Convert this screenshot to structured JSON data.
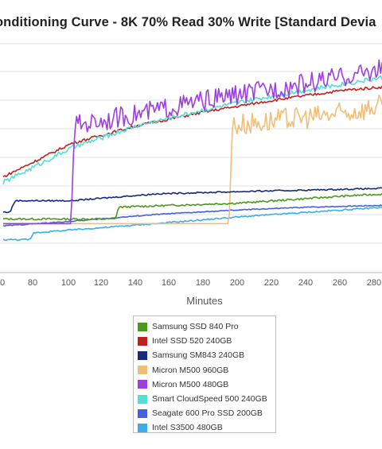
{
  "chart_data": {
    "type": "line",
    "title": "onditioning Curve - 8K 70% Read 30% Write [Standard Devia",
    "xlabel": "Minutes",
    "ylabel": "",
    "xlim": [
      60,
      285
    ],
    "ylim": [
      0,
      10
    ],
    "grid": true,
    "legend_position": "bottom-center",
    "x_ticks": [
      "0",
      "80",
      "100",
      "120",
      "140",
      "160",
      "180",
      "200",
      "220",
      "240",
      "260",
      "280"
    ],
    "series": [
      {
        "name": "Samsung SSD 840 Pro",
        "color": "#4a9a1c",
        "points": [
          [
            60,
            2.34
          ],
          [
            126,
            2.34
          ],
          [
            128,
            2.86
          ],
          [
            200,
            3.04
          ],
          [
            260,
            3.34
          ],
          [
            285,
            3.44
          ]
        ]
      },
      {
        "name": "Intel SSD 520 240GB",
        "color": "#c0211f",
        "points": [
          [
            60,
            4.18
          ],
          [
            100,
            5.64
          ],
          [
            140,
            6.44
          ],
          [
            180,
            7.04
          ],
          [
            220,
            7.54
          ],
          [
            260,
            7.96
          ],
          [
            285,
            8.12
          ]
        ]
      },
      {
        "name": "Samsung SM843 240GB",
        "color": "#1a2a7a",
        "points": [
          [
            60,
            2.64
          ],
          [
            64,
            2.64
          ],
          [
            67,
            3.14
          ],
          [
            100,
            3.14
          ],
          [
            150,
            3.44
          ],
          [
            200,
            3.54
          ],
          [
            285,
            3.68
          ]
        ]
      },
      {
        "name": "Micron M500 960GB",
        "color": "#f0be78",
        "points": [
          [
            60,
            2.14
          ],
          [
            193,
            2.14
          ],
          [
            195,
            6.44
          ],
          [
            220,
            6.64
          ],
          [
            260,
            6.94
          ],
          [
            285,
            7.34
          ]
        ]
      },
      {
        "name": "Micron M500 480GB",
        "color": "#9d3fe0",
        "points": [
          [
            60,
            2.14
          ],
          [
            100,
            2.14
          ],
          [
            102,
            6.44
          ],
          [
            140,
            6.94
          ],
          [
            180,
            7.54
          ],
          [
            220,
            8.04
          ],
          [
            260,
            8.54
          ],
          [
            285,
            8.94
          ]
        ]
      },
      {
        "name": "Smart CloudSpeed 500 240GB",
        "color": "#4fe0d8",
        "points": [
          [
            60,
            3.94
          ],
          [
            100,
            5.44
          ],
          [
            140,
            6.44
          ],
          [
            180,
            7.14
          ],
          [
            220,
            7.74
          ],
          [
            260,
            8.24
          ],
          [
            285,
            8.54
          ]
        ]
      },
      {
        "name": "Seagate 600 Pro SSD 200GB",
        "color": "#4461e0",
        "points": [
          [
            60,
            2.04
          ],
          [
            100,
            2.24
          ],
          [
            150,
            2.54
          ],
          [
            200,
            2.74
          ],
          [
            240,
            2.86
          ],
          [
            285,
            2.94
          ]
        ]
      },
      {
        "name": "Intel S3500 480GB",
        "color": "#3aaee8",
        "points": [
          [
            60,
            1.44
          ],
          [
            76,
            1.44
          ],
          [
            78,
            1.74
          ],
          [
            150,
            2.14
          ],
          [
            200,
            2.44
          ],
          [
            285,
            2.86
          ]
        ]
      }
    ]
  }
}
